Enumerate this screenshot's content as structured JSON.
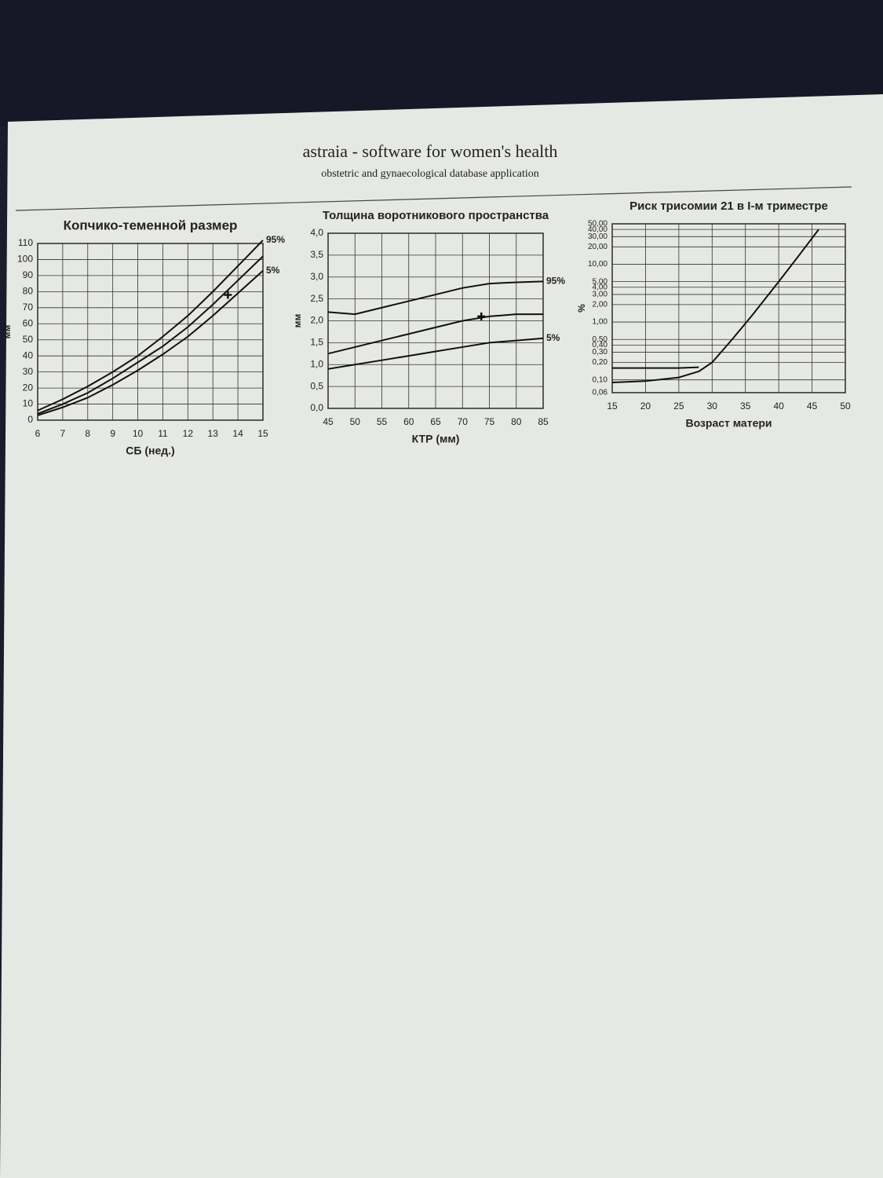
{
  "header": {
    "title": "astraia - software for women's health",
    "subtitle": "obstetric and gynaecological database application"
  },
  "chart_data": [
    {
      "type": "line",
      "title": "Копчико-теменной размер",
      "xlabel": "СБ (нед.)",
      "ylabel": "мм",
      "x": [
        6,
        7,
        8,
        9,
        10,
        11,
        12,
        13,
        14,
        15
      ],
      "series": [
        {
          "name": "95%",
          "color": "#111111",
          "values": [
            6,
            13,
            21,
            30,
            40,
            52,
            65,
            80,
            96,
            112
          ]
        },
        {
          "color": "#111111",
          "values": [
            4,
            10,
            17,
            26,
            36,
            46,
            58,
            72,
            87,
            102
          ]
        },
        {
          "name": "5%",
          "color": "#111111",
          "values": [
            3,
            8,
            14,
            22,
            31,
            41,
            52,
            65,
            79,
            93
          ]
        }
      ],
      "marker": {
        "x": 13.6,
        "y": 78
      },
      "xlim": [
        6,
        15
      ],
      "xticks": [
        6,
        7,
        8,
        9,
        10,
        11,
        12,
        13,
        14,
        15
      ],
      "ylim": [
        0,
        110
      ],
      "yticks": [
        0,
        10,
        20,
        30,
        40,
        50,
        60,
        70,
        80,
        90,
        100,
        110
      ],
      "grid": true,
      "log_y": false
    },
    {
      "type": "line",
      "title": "Толщина воротникового пространства",
      "xlabel": "КТР (мм)",
      "ylabel": "мм",
      "x": [
        45,
        50,
        55,
        60,
        65,
        70,
        75,
        80,
        85
      ],
      "series": [
        {
          "name": "95%",
          "color": "#111111",
          "values": [
            2.2,
            2.15,
            2.3,
            2.45,
            2.6,
            2.75,
            2.85,
            2.88,
            2.9
          ]
        },
        {
          "color": "#111111",
          "values": [
            1.25,
            1.4,
            1.55,
            1.7,
            1.85,
            2.0,
            2.1,
            2.15,
            2.15
          ]
        },
        {
          "name": "5%",
          "color": "#111111",
          "values": [
            0.9,
            1.0,
            1.1,
            1.2,
            1.3,
            1.4,
            1.5,
            1.55,
            1.6
          ]
        }
      ],
      "marker": {
        "x": 73.5,
        "y": 2.1
      },
      "xlim": [
        45,
        85
      ],
      "xticks": [
        45,
        50,
        55,
        60,
        65,
        70,
        75,
        80,
        85
      ],
      "ylim": [
        0,
        4
      ],
      "yticks": [
        {
          "value": 0,
          "label": "0,0"
        },
        {
          "value": 0.5,
          "label": "0,5"
        },
        {
          "value": 1,
          "label": "1,0"
        },
        {
          "value": 1.5,
          "label": "1,5"
        },
        {
          "value": 2,
          "label": "2,0"
        },
        {
          "value": 2.5,
          "label": "2,5"
        },
        {
          "value": 3,
          "label": "3,0"
        },
        {
          "value": 3.5,
          "label": "3,5"
        },
        {
          "value": 4,
          "label": "4,0"
        }
      ],
      "grid": true,
      "log_y": false
    },
    {
      "type": "line",
      "title": "Риск трисомии 21 в I-м триместре",
      "xlabel": "Возраст матери",
      "ylabel": "%",
      "x": [
        15,
        20,
        25,
        28,
        30,
        33,
        36,
        40,
        43,
        46
      ],
      "series": [
        {
          "color": "#111111",
          "values": [
            0.09,
            0.095,
            0.11,
            0.14,
            0.2,
            0.5,
            1.3,
            5,
            14,
            40
          ]
        },
        {
          "color": "#111111",
          "values": [
            0.16,
            0.16,
            0.16,
            0.165,
            null,
            null,
            null,
            null,
            null,
            null
          ]
        }
      ],
      "xlim": [
        15,
        50
      ],
      "xticks": [
        15,
        20,
        25,
        30,
        35,
        40,
        45,
        50
      ],
      "ylim": [
        0.06,
        50
      ],
      "yticks": [
        {
          "value": 0.06,
          "label": "0,06"
        },
        {
          "value": 0.1,
          "label": "0,10"
        },
        {
          "value": 0.2,
          "label": "0,20"
        },
        {
          "value": 0.3,
          "label": "0,30"
        },
        {
          "value": 0.4,
          "label": "0,40"
        },
        {
          "value": 0.5,
          "label": "0,50"
        },
        {
          "value": 1,
          "label": "1,00"
        },
        {
          "value": 2,
          "label": "2,00"
        },
        {
          "value": 3,
          "label": "3,00"
        },
        {
          "value": 4,
          "label": "4,00"
        },
        {
          "value": 5,
          "label": "5,00"
        },
        {
          "value": 10,
          "label": "10,00"
        },
        {
          "value": 20,
          "label": "20,00"
        },
        {
          "value": 30,
          "label": "30,00"
        },
        {
          "value": 40,
          "label": "40,00"
        },
        {
          "value": 50,
          "label": "50,00"
        }
      ],
      "grid": true,
      "log_y": true
    }
  ]
}
